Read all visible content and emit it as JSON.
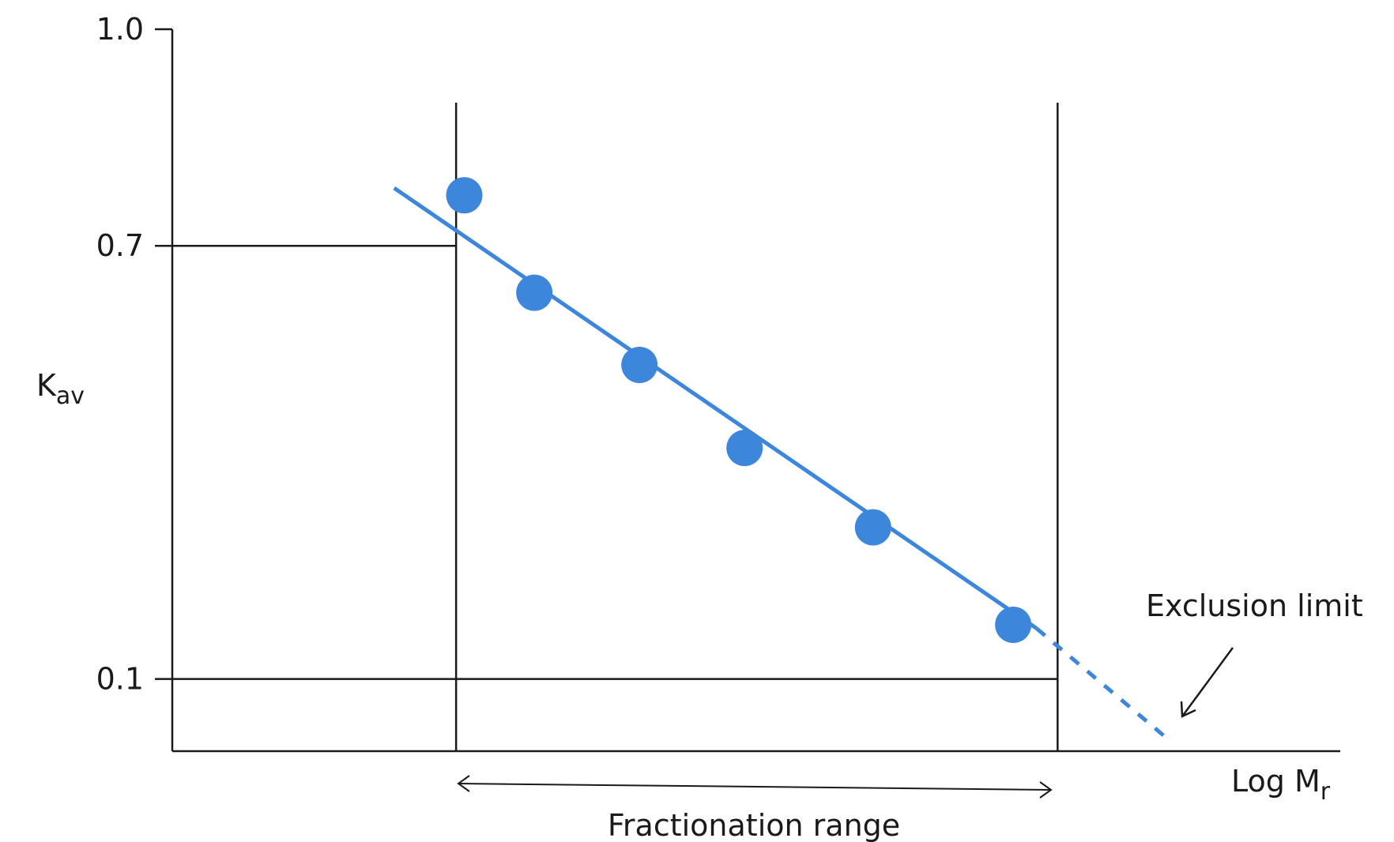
{
  "chart_data": {
    "type": "scatter",
    "title": "",
    "xlabel": "Log M",
    "xlabel_subscript": "r",
    "ylabel": "K",
    "ylabel_subscript": "av",
    "ylim": [
      0.0,
      1.0
    ],
    "y_ticks": [
      {
        "value": 1.0,
        "label": "1.0"
      },
      {
        "value": 0.7,
        "label": "0.7"
      },
      {
        "value": 0.1,
        "label": "0.1"
      }
    ],
    "xlim": [
      0,
      1
    ],
    "x_ticks": [],
    "grid": false,
    "legend": "none",
    "series": [
      {
        "x": [
          0.25,
          0.31,
          0.4,
          0.49,
          0.6,
          0.72
        ],
        "y": [
          0.77,
          0.635,
          0.535,
          0.42,
          0.31,
          0.175
        ]
      }
    ],
    "fit_line": {
      "solid": {
        "x": [
          0.19,
          0.74
        ],
        "y": [
          0.78,
          0.17
        ]
      },
      "dashed": {
        "x": [
          0.74,
          0.85
        ],
        "y": [
          0.17,
          0.02
        ]
      }
    },
    "reference_lines": {
      "vertical_x": [
        0.243,
        0.758
      ],
      "horizontal_y": [
        0.7,
        0.1
      ]
    },
    "annotations": {
      "fractionation_range": "Fractionation range",
      "exclusion_limit": "Exclusion limit"
    },
    "colors": {
      "series": "#3c86dc",
      "axes": "#1a1a1a"
    }
  }
}
